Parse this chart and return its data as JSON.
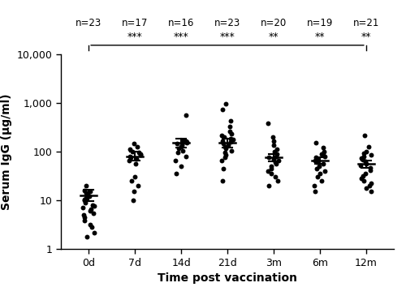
{
  "x_labels": [
    "0d",
    "7d",
    "14d",
    "21d",
    "3m",
    "6m",
    "12m"
  ],
  "n_labels": [
    "n=23",
    "n=17",
    "n=16",
    "n=23",
    "n=20",
    "n=19",
    "n=21"
  ],
  "sig_labels": [
    "",
    "***",
    "***",
    "***",
    "**",
    "**",
    "**"
  ],
  "means": [
    12.5,
    80,
    150,
    150,
    75,
    65,
    55
  ],
  "sems_upper": [
    4,
    18,
    35,
    35,
    15,
    12,
    10
  ],
  "sems_lower": [
    3,
    15,
    28,
    28,
    12,
    10,
    8
  ],
  "ylabel": "Serum IgG (μg/ml)",
  "xlabel": "Time post vaccination",
  "dot_color": "#000000",
  "dot_size": 18,
  "data_points": [
    [
      1.8,
      2.2,
      2.8,
      3.2,
      3.8,
      4.5,
      5.0,
      5.5,
      6.0,
      6.5,
      7.0,
      7.5,
      8.0,
      9.0,
      10.0,
      10.5,
      11.0,
      12.0,
      13.0,
      14.0,
      15.0,
      16.0,
      20.0
    ],
    [
      10.0,
      15.0,
      20.0,
      25.0,
      30.0,
      55.0,
      65.0,
      70.0,
      75.0,
      80.0,
      85.0,
      90.0,
      95.0,
      100.0,
      110.0,
      125.0,
      145.0
    ],
    [
      35.0,
      50.0,
      65.0,
      80.0,
      95.0,
      105.0,
      115.0,
      125.0,
      135.0,
      145.0,
      150.0,
      155.0,
      160.0,
      165.0,
      170.0,
      550.0
    ],
    [
      25.0,
      45.0,
      65.0,
      75.0,
      85.0,
      95.0,
      105.0,
      115.0,
      125.0,
      135.0,
      145.0,
      155.0,
      165.0,
      175.0,
      185.0,
      195.0,
      210.0,
      230.0,
      260.0,
      320.0,
      420.0,
      720.0,
      950.0
    ],
    [
      20.0,
      25.0,
      30.0,
      35.0,
      40.0,
      45.0,
      50.0,
      55.0,
      60.0,
      65.0,
      70.0,
      75.0,
      80.0,
      90.0,
      100.0,
      110.0,
      135.0,
      165.0,
      200.0,
      380.0
    ],
    [
      15.0,
      20.0,
      25.0,
      30.0,
      35.0,
      40.0,
      45.0,
      50.0,
      55.0,
      60.0,
      65.0,
      70.0,
      75.0,
      80.0,
      85.0,
      90.0,
      100.0,
      120.0,
      150.0
    ],
    [
      15.0,
      18.0,
      20.0,
      22.0,
      25.0,
      28.0,
      32.0,
      36.0,
      42.0,
      47.0,
      52.0,
      57.0,
      62.0,
      67.0,
      72.0,
      78.0,
      85.0,
      92.0,
      100.0,
      125.0,
      210.0
    ]
  ],
  "ylim_min": 1,
  "ylim_max": 10000,
  "yticks": [
    1,
    10,
    100,
    1000,
    10000
  ],
  "ytick_labels": [
    "1",
    "10",
    "100",
    "1,000",
    "10,000"
  ]
}
